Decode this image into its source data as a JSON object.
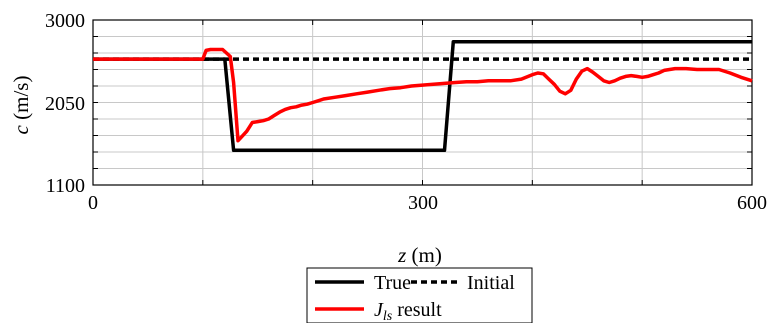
{
  "chart_data": {
    "type": "line",
    "xlabel": "z (m)",
    "xlabel_var": "z",
    "xlabel_unit": "(m)",
    "ylabel": "c (m/s)",
    "ylabel_var": "c",
    "ylabel_unit": "(m/s)",
    "xlim": [
      0,
      600
    ],
    "ylim": [
      1100,
      3000
    ],
    "xticks": [
      0,
      300,
      600
    ],
    "xtick_labels": [
      "0",
      "300",
      "600"
    ],
    "yticks": [
      1100,
      2050,
      3000
    ],
    "ytick_labels": [
      "1100",
      "2050",
      "3000"
    ],
    "grid": true,
    "x_grid": [
      0,
      100,
      200,
      300,
      400,
      500,
      600
    ],
    "y_grid": [
      1100,
      1290,
      1480,
      1670,
      1860,
      2050,
      2240,
      2430,
      2620,
      2810,
      3000
    ],
    "legend_position": "below",
    "series": [
      {
        "name": "True",
        "color": "#000000",
        "style": "solid",
        "x": [
          0,
          120,
          128,
          320,
          328,
          600
        ],
        "y": [
          2550,
          2550,
          1500,
          1500,
          2750,
          2750
        ]
      },
      {
        "name": "Initial",
        "color": "#000000",
        "style": "dashed",
        "x": [
          0,
          600
        ],
        "y": [
          2550,
          2550
        ]
      },
      {
        "name": "J_ls result",
        "name_main": "J",
        "name_sub": "ls",
        "name_rest": " result",
        "color": "#ff0000",
        "style": "solid",
        "x": [
          0,
          100,
          103,
          107,
          118,
          125,
          128,
          132,
          135,
          140,
          145,
          150,
          155,
          160,
          165,
          170,
          175,
          180,
          185,
          190,
          195,
          200,
          205,
          210,
          220,
          230,
          240,
          250,
          260,
          270,
          280,
          290,
          300,
          310,
          320,
          330,
          340,
          350,
          360,
          370,
          380,
          390,
          400,
          405,
          410,
          415,
          420,
          425,
          430,
          435,
          440,
          445,
          450,
          455,
          460,
          465,
          470,
          475,
          480,
          485,
          490,
          495,
          500,
          505,
          510,
          515,
          520,
          530,
          540,
          550,
          560,
          570,
          580,
          590,
          600
        ],
        "y": [
          2550,
          2550,
          2650,
          2660,
          2660,
          2580,
          2280,
          1610,
          1650,
          1720,
          1820,
          1830,
          1840,
          1860,
          1900,
          1940,
          1970,
          1990,
          2000,
          2020,
          2030,
          2050,
          2070,
          2090,
          2110,
          2130,
          2150,
          2170,
          2190,
          2210,
          2220,
          2240,
          2250,
          2260,
          2270,
          2280,
          2290,
          2290,
          2300,
          2300,
          2300,
          2320,
          2370,
          2390,
          2380,
          2320,
          2260,
          2180,
          2150,
          2190,
          2320,
          2410,
          2440,
          2400,
          2350,
          2300,
          2280,
          2300,
          2330,
          2350,
          2360,
          2350,
          2340,
          2350,
          2370,
          2390,
          2420,
          2440,
          2440,
          2430,
          2430,
          2430,
          2390,
          2340,
          2300
        ]
      }
    ]
  }
}
